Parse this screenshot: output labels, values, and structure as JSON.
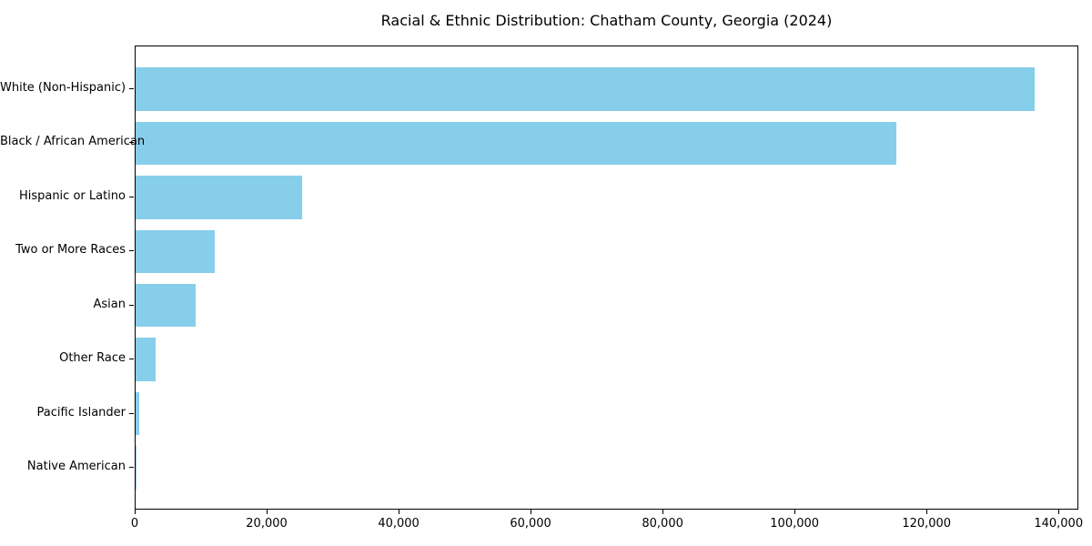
{
  "chart_data": {
    "type": "bar",
    "orientation": "horizontal",
    "title": "Racial & Ethnic Distribution: Chatham County, Georgia (2024)",
    "categories": [
      "White (Non-Hispanic)",
      "Black / African American",
      "Hispanic or Latino",
      "Two or More Races",
      "Asian",
      "Other Race",
      "Pacific Islander",
      "Native American"
    ],
    "values": [
      136200,
      115350,
      25200,
      12000,
      9100,
      3000,
      550,
      150
    ],
    "xlabel": "",
    "ylabel": "",
    "xlim": [
      0,
      143000
    ],
    "xticks": [
      0,
      20000,
      40000,
      60000,
      80000,
      100000,
      120000,
      140000
    ],
    "xtick_labels": [
      "0",
      "20,000",
      "40,000",
      "60,000",
      "80,000",
      "100,000",
      "120,000",
      "140,000"
    ],
    "bar_color": "#87CEEB",
    "spine_color": "#000000",
    "grid": false,
    "legend": "none",
    "bar_height_fraction": 0.8
  }
}
